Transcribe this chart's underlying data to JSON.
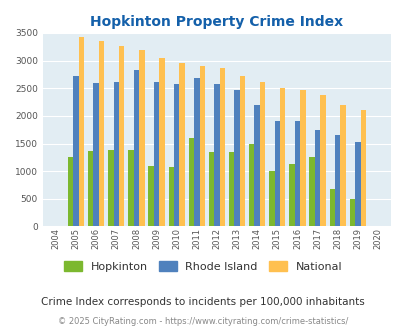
{
  "title": "Hopkinton Property Crime Index",
  "years": [
    2004,
    2005,
    2006,
    2007,
    2008,
    2009,
    2010,
    2011,
    2012,
    2013,
    2014,
    2015,
    2016,
    2017,
    2018,
    2019,
    2020
  ],
  "hopkinton": [
    0,
    1250,
    1360,
    1380,
    1390,
    1100,
    1070,
    1600,
    1350,
    1350,
    1500,
    1010,
    1130,
    1250,
    670,
    490,
    0
  ],
  "rhode_island": [
    0,
    2730,
    2600,
    2620,
    2830,
    2620,
    2570,
    2680,
    2570,
    2470,
    2190,
    1900,
    1900,
    1750,
    1650,
    1520,
    0
  ],
  "national": [
    0,
    3420,
    3350,
    3260,
    3200,
    3050,
    2950,
    2910,
    2860,
    2730,
    2620,
    2500,
    2470,
    2380,
    2200,
    2110,
    0
  ],
  "hopkinton_color": "#7cb82f",
  "rhode_island_color": "#4f81bd",
  "national_color": "#ffc050",
  "title_color": "#1460aa",
  "ylim": [
    0,
    3500
  ],
  "yticks": [
    0,
    500,
    1000,
    1500,
    2000,
    2500,
    3000,
    3500
  ],
  "note": "Crime Index corresponds to incidents per 100,000 inhabitants",
  "footer": "© 2025 CityRating.com - https://www.cityrating.com/crime-statistics/",
  "bar_width": 0.27,
  "grid_color": "#ffffff",
  "axis_bg": "#e2edf3"
}
